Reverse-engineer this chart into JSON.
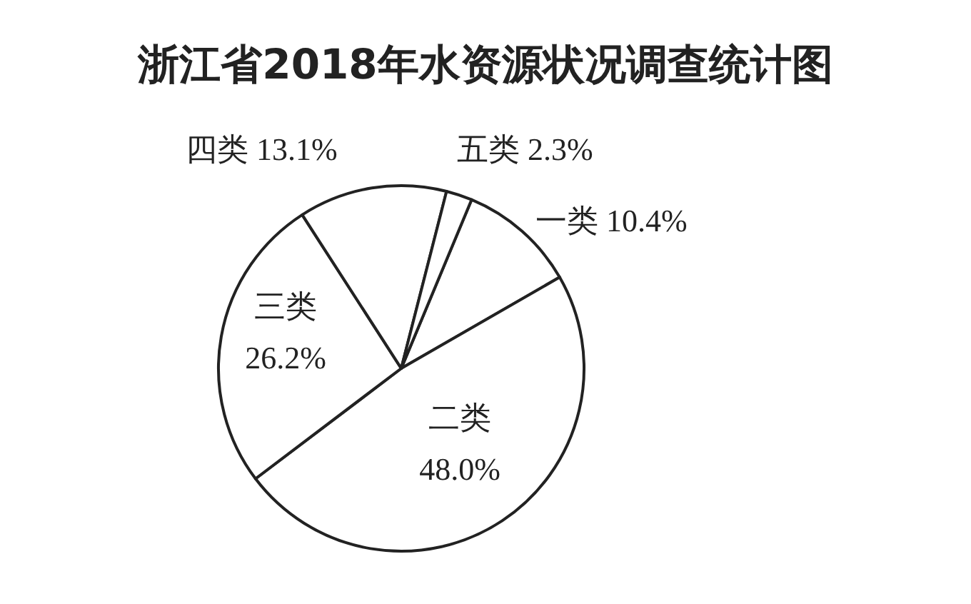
{
  "chart_data": {
    "type": "pie",
    "title": "浙江省2018年水资源状况调查统计图",
    "categories": [
      "一类",
      "二类",
      "三类",
      "四类",
      "五类"
    ],
    "values": [
      10.4,
      48.0,
      26.2,
      13.1,
      2.3
    ],
    "value_labels": [
      "10.4%",
      "48.0%",
      "26.2%",
      "13.1%",
      "2.3%"
    ],
    "colors": [
      "#ffffff",
      "#ffffff",
      "#ffffff",
      "#ffffff",
      "#ffffff"
    ]
  }
}
